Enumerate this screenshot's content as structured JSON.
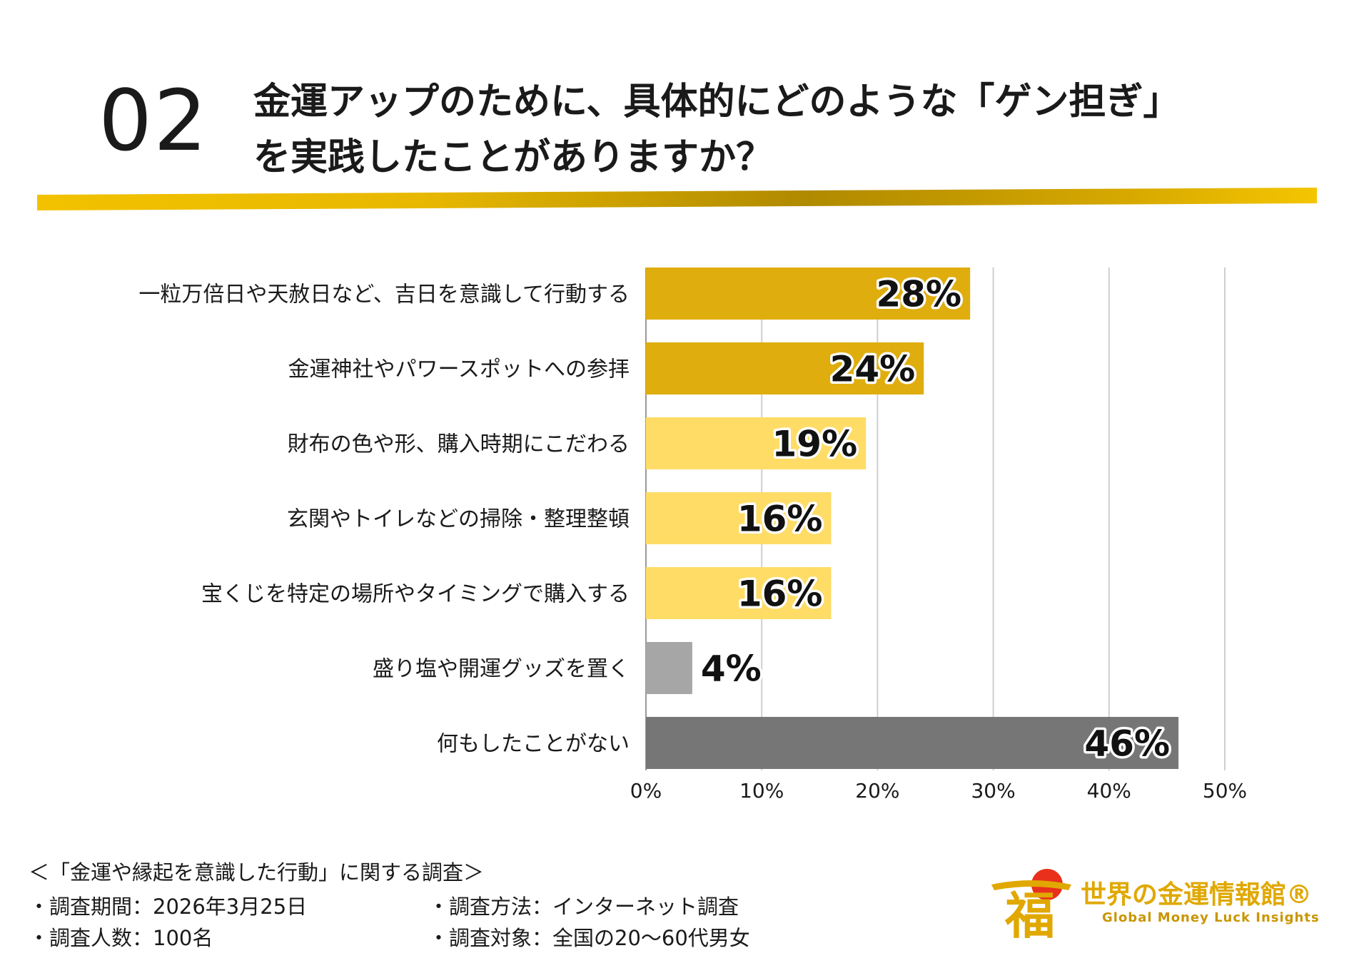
{
  "header": {
    "number": "02",
    "question_line1": "金運アップのために、具体的にどのような「ゲン担ぎ」",
    "question_line2": "を実践したことがありますか？"
  },
  "chart_data": {
    "type": "bar",
    "orientation": "horizontal",
    "categories": [
      "一粒万倍日や天赦日など、吉日を意識して行動する",
      "金運神社やパワースポットへの参拝",
      "財布の色や形、購入時期にこだわる",
      "玄関やトイレなどの掃除・整理整頓",
      "宝くじを特定の場所やタイミングで購入する",
      "盛り塩や開運グッズを置く",
      "何もしたことがない"
    ],
    "values": [
      28,
      24,
      19,
      16,
      16,
      4,
      46
    ],
    "value_labels": [
      "28%",
      "24%",
      "19%",
      "16%",
      "16%",
      "4%",
      "46%"
    ],
    "bar_colors": [
      "#dfad0e",
      "#dfad0e",
      "#fedc66",
      "#fedc66",
      "#fedc66",
      "#a6a6a6",
      "#767676"
    ],
    "xlim": [
      0,
      50
    ],
    "x_ticks": [
      0,
      10,
      20,
      30,
      40,
      50
    ],
    "x_tick_labels": [
      "0%",
      "10%",
      "20%",
      "30%",
      "40%",
      "50%"
    ],
    "grid": true
  },
  "footer": {
    "survey_title": "＜「金運や縁起を意識した行動」に関する調査＞",
    "period": "・調査期間：2026年3月25日",
    "count": "・調査人数：100名",
    "method": "・調査方法：インターネット調査",
    "target": "・調査対象：全国の20～60代男女"
  },
  "brand": {
    "name": "世界の金運情報館®",
    "tagline": "Global Money Luck Insights",
    "logo_char": "福",
    "colors": {
      "gold": "#e0a800",
      "red": "#e8301c"
    }
  }
}
